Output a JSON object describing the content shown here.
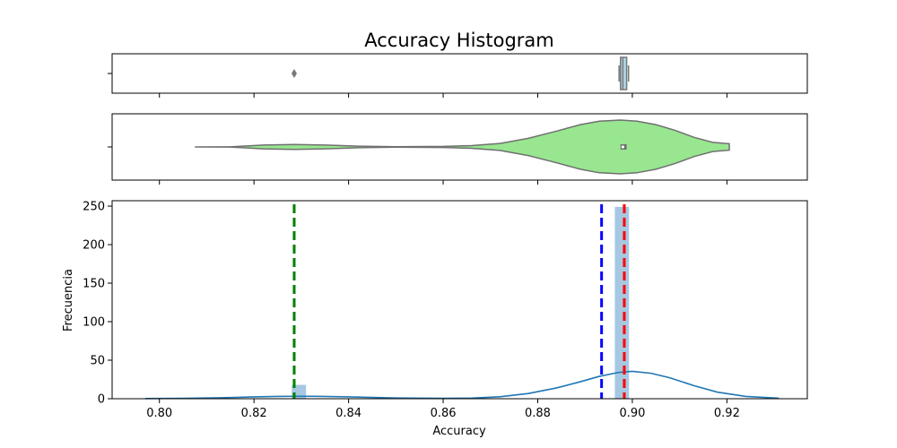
{
  "chart_data": {
    "type": "histogram",
    "title": "Accuracy Histogram",
    "xlabel": "Accuracy",
    "ylabel": "Frecuencia",
    "xlim": [
      0.79,
      0.937
    ],
    "ylim": [
      0,
      257
    ],
    "x_ticks": [
      0.8,
      0.82,
      0.84,
      0.86,
      0.88,
      0.9,
      0.92
    ],
    "x_tick_labels": [
      "0.80",
      "0.82",
      "0.84",
      "0.86",
      "0.88",
      "0.90",
      "0.92"
    ],
    "y_ticks": [
      0,
      50,
      100,
      150,
      200,
      250
    ],
    "y_tick_labels": [
      "0",
      "50",
      "100",
      "150",
      "200",
      "250"
    ],
    "histogram": {
      "bin_width": 0.003,
      "bars": [
        {
          "x": 0.8295,
          "count": 18
        },
        {
          "x": 0.8978,
          "count": 249
        }
      ],
      "color": "#a6c8e2"
    },
    "kde": {
      "color": "#1f77b4",
      "x": [
        0.797,
        0.805,
        0.813,
        0.82,
        0.825,
        0.829,
        0.833,
        0.84,
        0.85,
        0.86,
        0.866,
        0.872,
        0.878,
        0.884,
        0.889,
        0.893,
        0.897,
        0.9,
        0.904,
        0.908,
        0.913,
        0.918,
        0.924,
        0.931
      ],
      "y": [
        0.2,
        0.5,
        1.2,
        2.4,
        3.0,
        3.2,
        3.1,
        2.4,
        1.0,
        0.5,
        0.8,
        2.5,
        6.8,
        14,
        22,
        29,
        34,
        35.5,
        33,
        27,
        17,
        8.5,
        3,
        0.6
      ]
    },
    "vlines": [
      {
        "x": 0.8285,
        "color": "#008000",
        "style": "dashed"
      },
      {
        "x": 0.8935,
        "color": "#0000ff",
        "style": "dashed"
      },
      {
        "x": 0.8983,
        "color": "#ff0000",
        "style": "dashed"
      }
    ],
    "boxplot": {
      "q1": 0.8975,
      "median": 0.898,
      "q3": 0.8988,
      "whisker_low": 0.8972,
      "whisker_high": 0.8992,
      "outliers": [
        0.8285
      ],
      "color": "#add8e6"
    },
    "violin": {
      "color": "#98e690",
      "x": [
        0.8075,
        0.815,
        0.822,
        0.8285,
        0.835,
        0.842,
        0.85,
        0.86,
        0.866,
        0.872,
        0.878,
        0.884,
        0.889,
        0.893,
        0.8975,
        0.901,
        0.905,
        0.909,
        0.913,
        0.917,
        0.9205
      ],
      "half_width": [
        0.0,
        0.004,
        0.07,
        0.09,
        0.07,
        0.03,
        0.01,
        0.02,
        0.05,
        0.13,
        0.32,
        0.59,
        0.83,
        0.96,
        1.0,
        0.96,
        0.83,
        0.62,
        0.36,
        0.17,
        0.12
      ],
      "inner_box": [
        0.8975,
        0.8988
      ],
      "median": 0.898
    }
  }
}
